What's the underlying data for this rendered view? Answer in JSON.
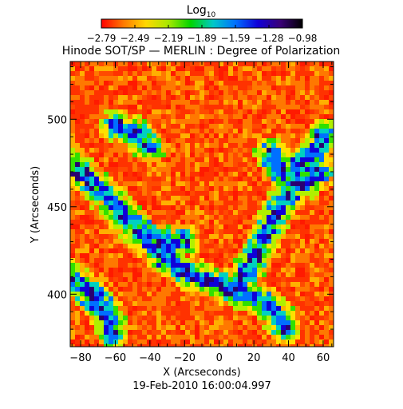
{
  "colorbar": {
    "label_base": "Log",
    "label_sub": "10",
    "ticks": [
      "-2.79",
      "-2.49",
      "-2.19",
      "-1.89",
      "-1.59",
      "-1.28",
      "-0.98"
    ],
    "stops": [
      "#ff0000",
      "#ff7a00",
      "#ffd800",
      "#a8e800",
      "#00d400",
      "#00c8c8",
      "#0070ff",
      "#1000d8",
      "#3a0078",
      "#000000"
    ]
  },
  "chart_data": {
    "type": "heatmap",
    "title": "Hinode SOT/SP — MERLIN : Degree of Polarization",
    "xlabel": "X (Arcseconds)",
    "ylabel": "Y (Arcseconds)",
    "xlim": [
      -86,
      66
    ],
    "ylim": [
      370,
      533
    ],
    "x_ticks": [
      -80,
      -60,
      -40,
      -20,
      0,
      20,
      40,
      60
    ],
    "y_ticks": [
      400,
      450,
      500
    ],
    "value_label": "Log10",
    "value_range": [
      -2.79,
      -0.98
    ],
    "timestamp": "19-Feb-2010 16:00:04.997"
  }
}
